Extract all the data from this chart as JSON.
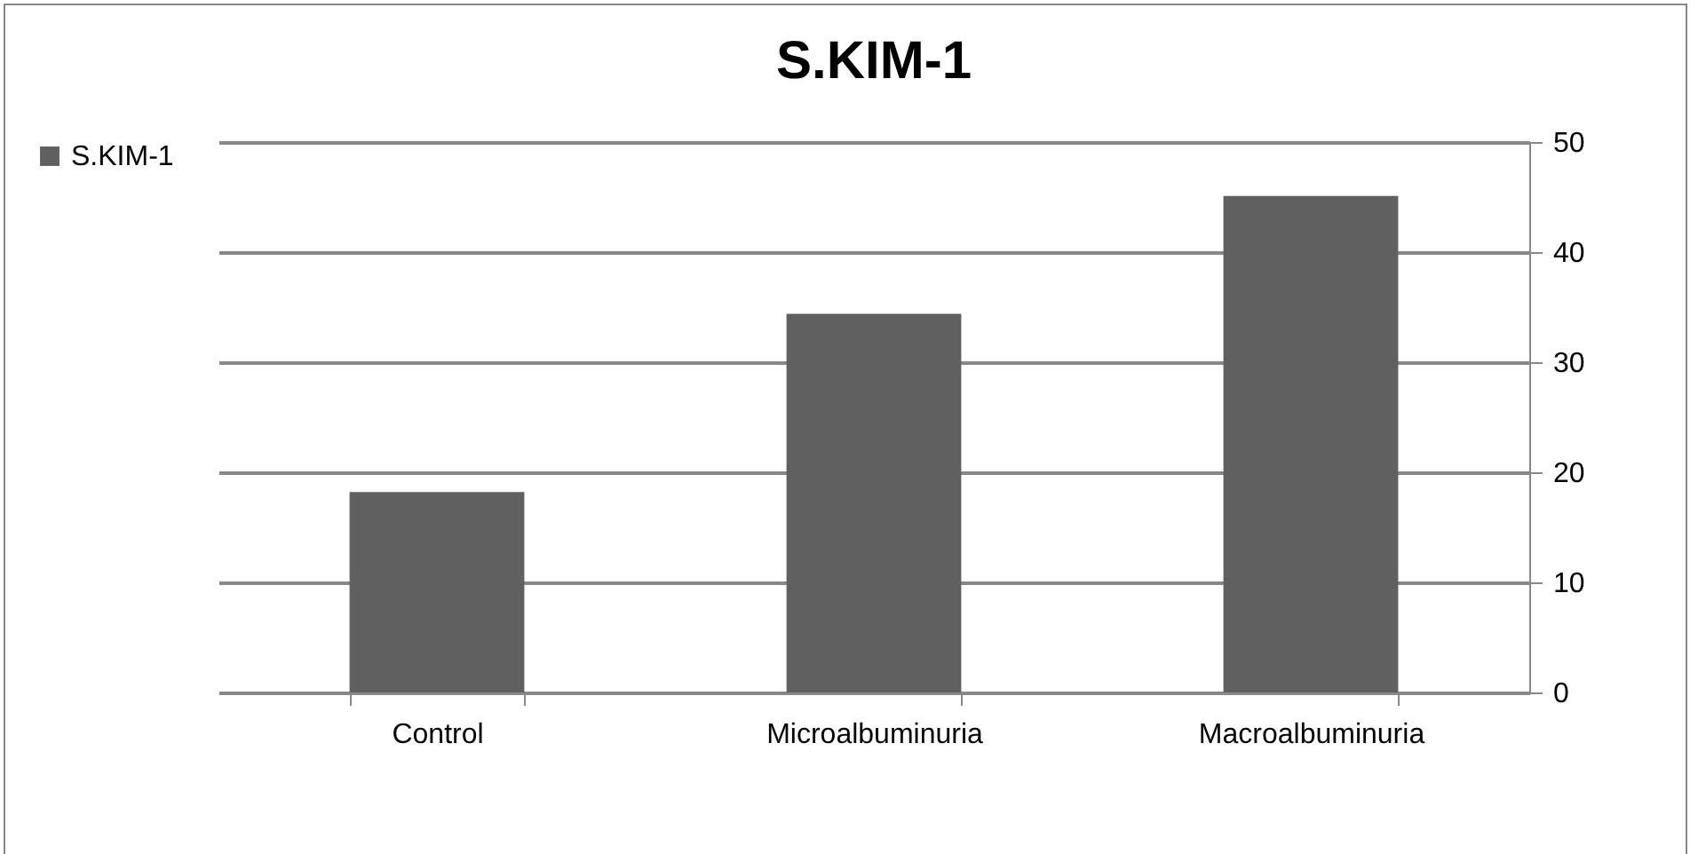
{
  "chart_data": {
    "type": "bar",
    "title": "S.KIM-1",
    "categories": [
      "Control",
      "Microalbuminuria",
      "Macroalbuminuria"
    ],
    "series": [
      {
        "name": "S.KIM-1",
        "color": "#606060",
        "values": [
          18.2,
          34.4,
          45.1
        ]
      }
    ],
    "ylim": [
      0,
      50
    ],
    "yticks": [
      0,
      10,
      20,
      30,
      40,
      50
    ],
    "grid": "y",
    "legend": "left"
  }
}
